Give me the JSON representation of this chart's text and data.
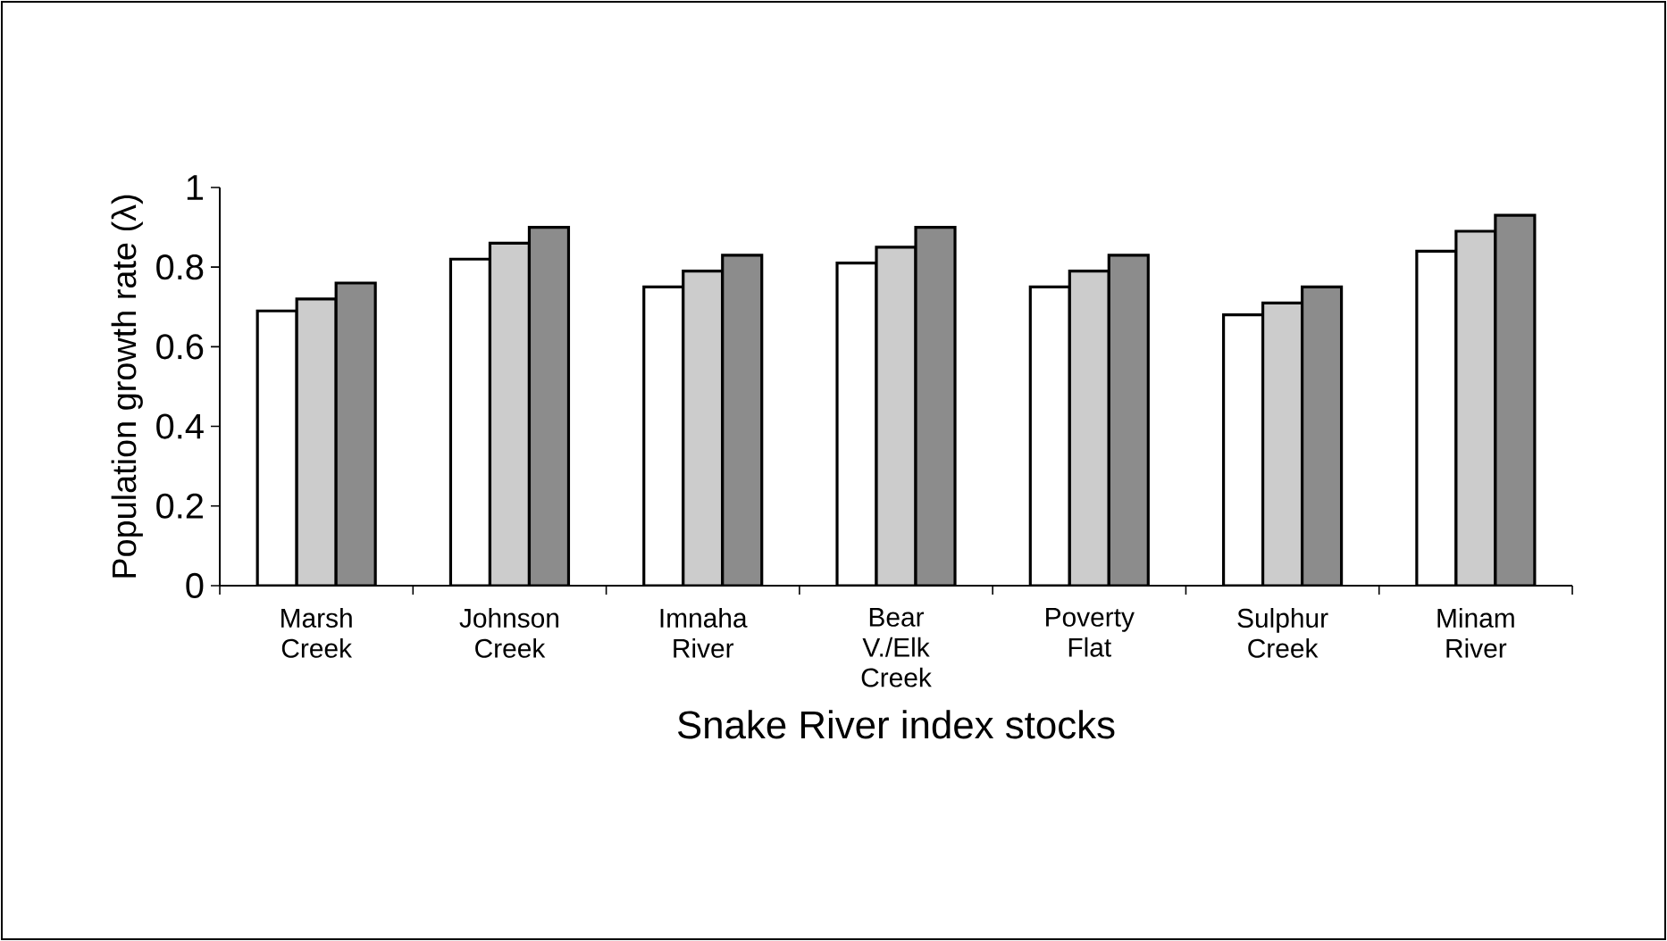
{
  "chart_data": {
    "type": "bar",
    "xlabel": "Snake River index stocks",
    "ylabel": "Population growth rate (λ)",
    "categories": [
      "Marsh Creek",
      "Johnson Creek",
      "Imnaha River",
      "Bear V./Elk Creek",
      "Poverty Flat",
      "Sulphur Creek",
      "Minam River"
    ],
    "series": [
      {
        "color": "#ffffff",
        "values": [
          0.69,
          0.82,
          0.75,
          0.81,
          0.75,
          0.68,
          0.84
        ]
      },
      {
        "color": "#cccccc",
        "values": [
          0.72,
          0.86,
          0.79,
          0.85,
          0.79,
          0.71,
          0.89
        ]
      },
      {
        "color": "#8c8c8c",
        "values": [
          0.76,
          0.9,
          0.83,
          0.9,
          0.83,
          0.75,
          0.93
        ]
      }
    ],
    "ylim": [
      0,
      1
    ],
    "yticks": [
      0,
      0.2,
      0.4,
      0.6,
      0.8,
      1
    ],
    "grid": false
  }
}
